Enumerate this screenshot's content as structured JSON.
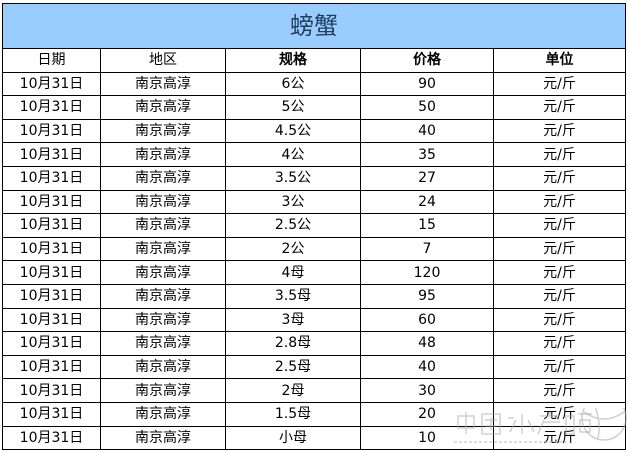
{
  "title": "螃蟹",
  "columns": [
    "日期",
    "地区",
    "规格",
    "价格",
    "单位"
  ],
  "rows": [
    [
      "10月31日",
      "南京高淳",
      "6公",
      "90",
      "元/斤"
    ],
    [
      "10月31日",
      "南京高淳",
      "5公",
      "50",
      "元/斤"
    ],
    [
      "10月31日",
      "南京高淳",
      "4.5公",
      "40",
      "元/斤"
    ],
    [
      "10月31日",
      "南京高淳",
      "4公",
      "35",
      "元/斤"
    ],
    [
      "10月31日",
      "南京高淳",
      "3.5公",
      "27",
      "元/斤"
    ],
    [
      "10月31日",
      "南京高淳",
      "3公",
      "24",
      "元/斤"
    ],
    [
      "10月31日",
      "南京高淳",
      "2.5公",
      "15",
      "元/斤"
    ],
    [
      "10月31日",
      "南京高淳",
      "2公",
      "7",
      "元/斤"
    ],
    [
      "10月31日",
      "南京高淳",
      "4母",
      "120",
      "元/斤"
    ],
    [
      "10月31日",
      "南京高淳",
      "3.5母",
      "95",
      "元/斤"
    ],
    [
      "10月31日",
      "南京高淳",
      "3母",
      "60",
      "元/斤"
    ],
    [
      "10月31日",
      "南京高淳",
      "2.8母",
      "48",
      "元/斤"
    ],
    [
      "10月31日",
      "南京高淳",
      "2.5母",
      "40",
      "元/斤"
    ],
    [
      "10月31日",
      "南京高淳",
      "2母",
      "30",
      "元/斤"
    ],
    [
      "10月31日",
      "南京高淳",
      "1.5母",
      "20",
      "元/斤"
    ],
    [
      "10月31日",
      "南京高淳",
      "小母",
      "10",
      "元/斤"
    ]
  ],
  "watermark": "中国水产频道",
  "colors": {
    "title_bg": "#99ccff"
  }
}
